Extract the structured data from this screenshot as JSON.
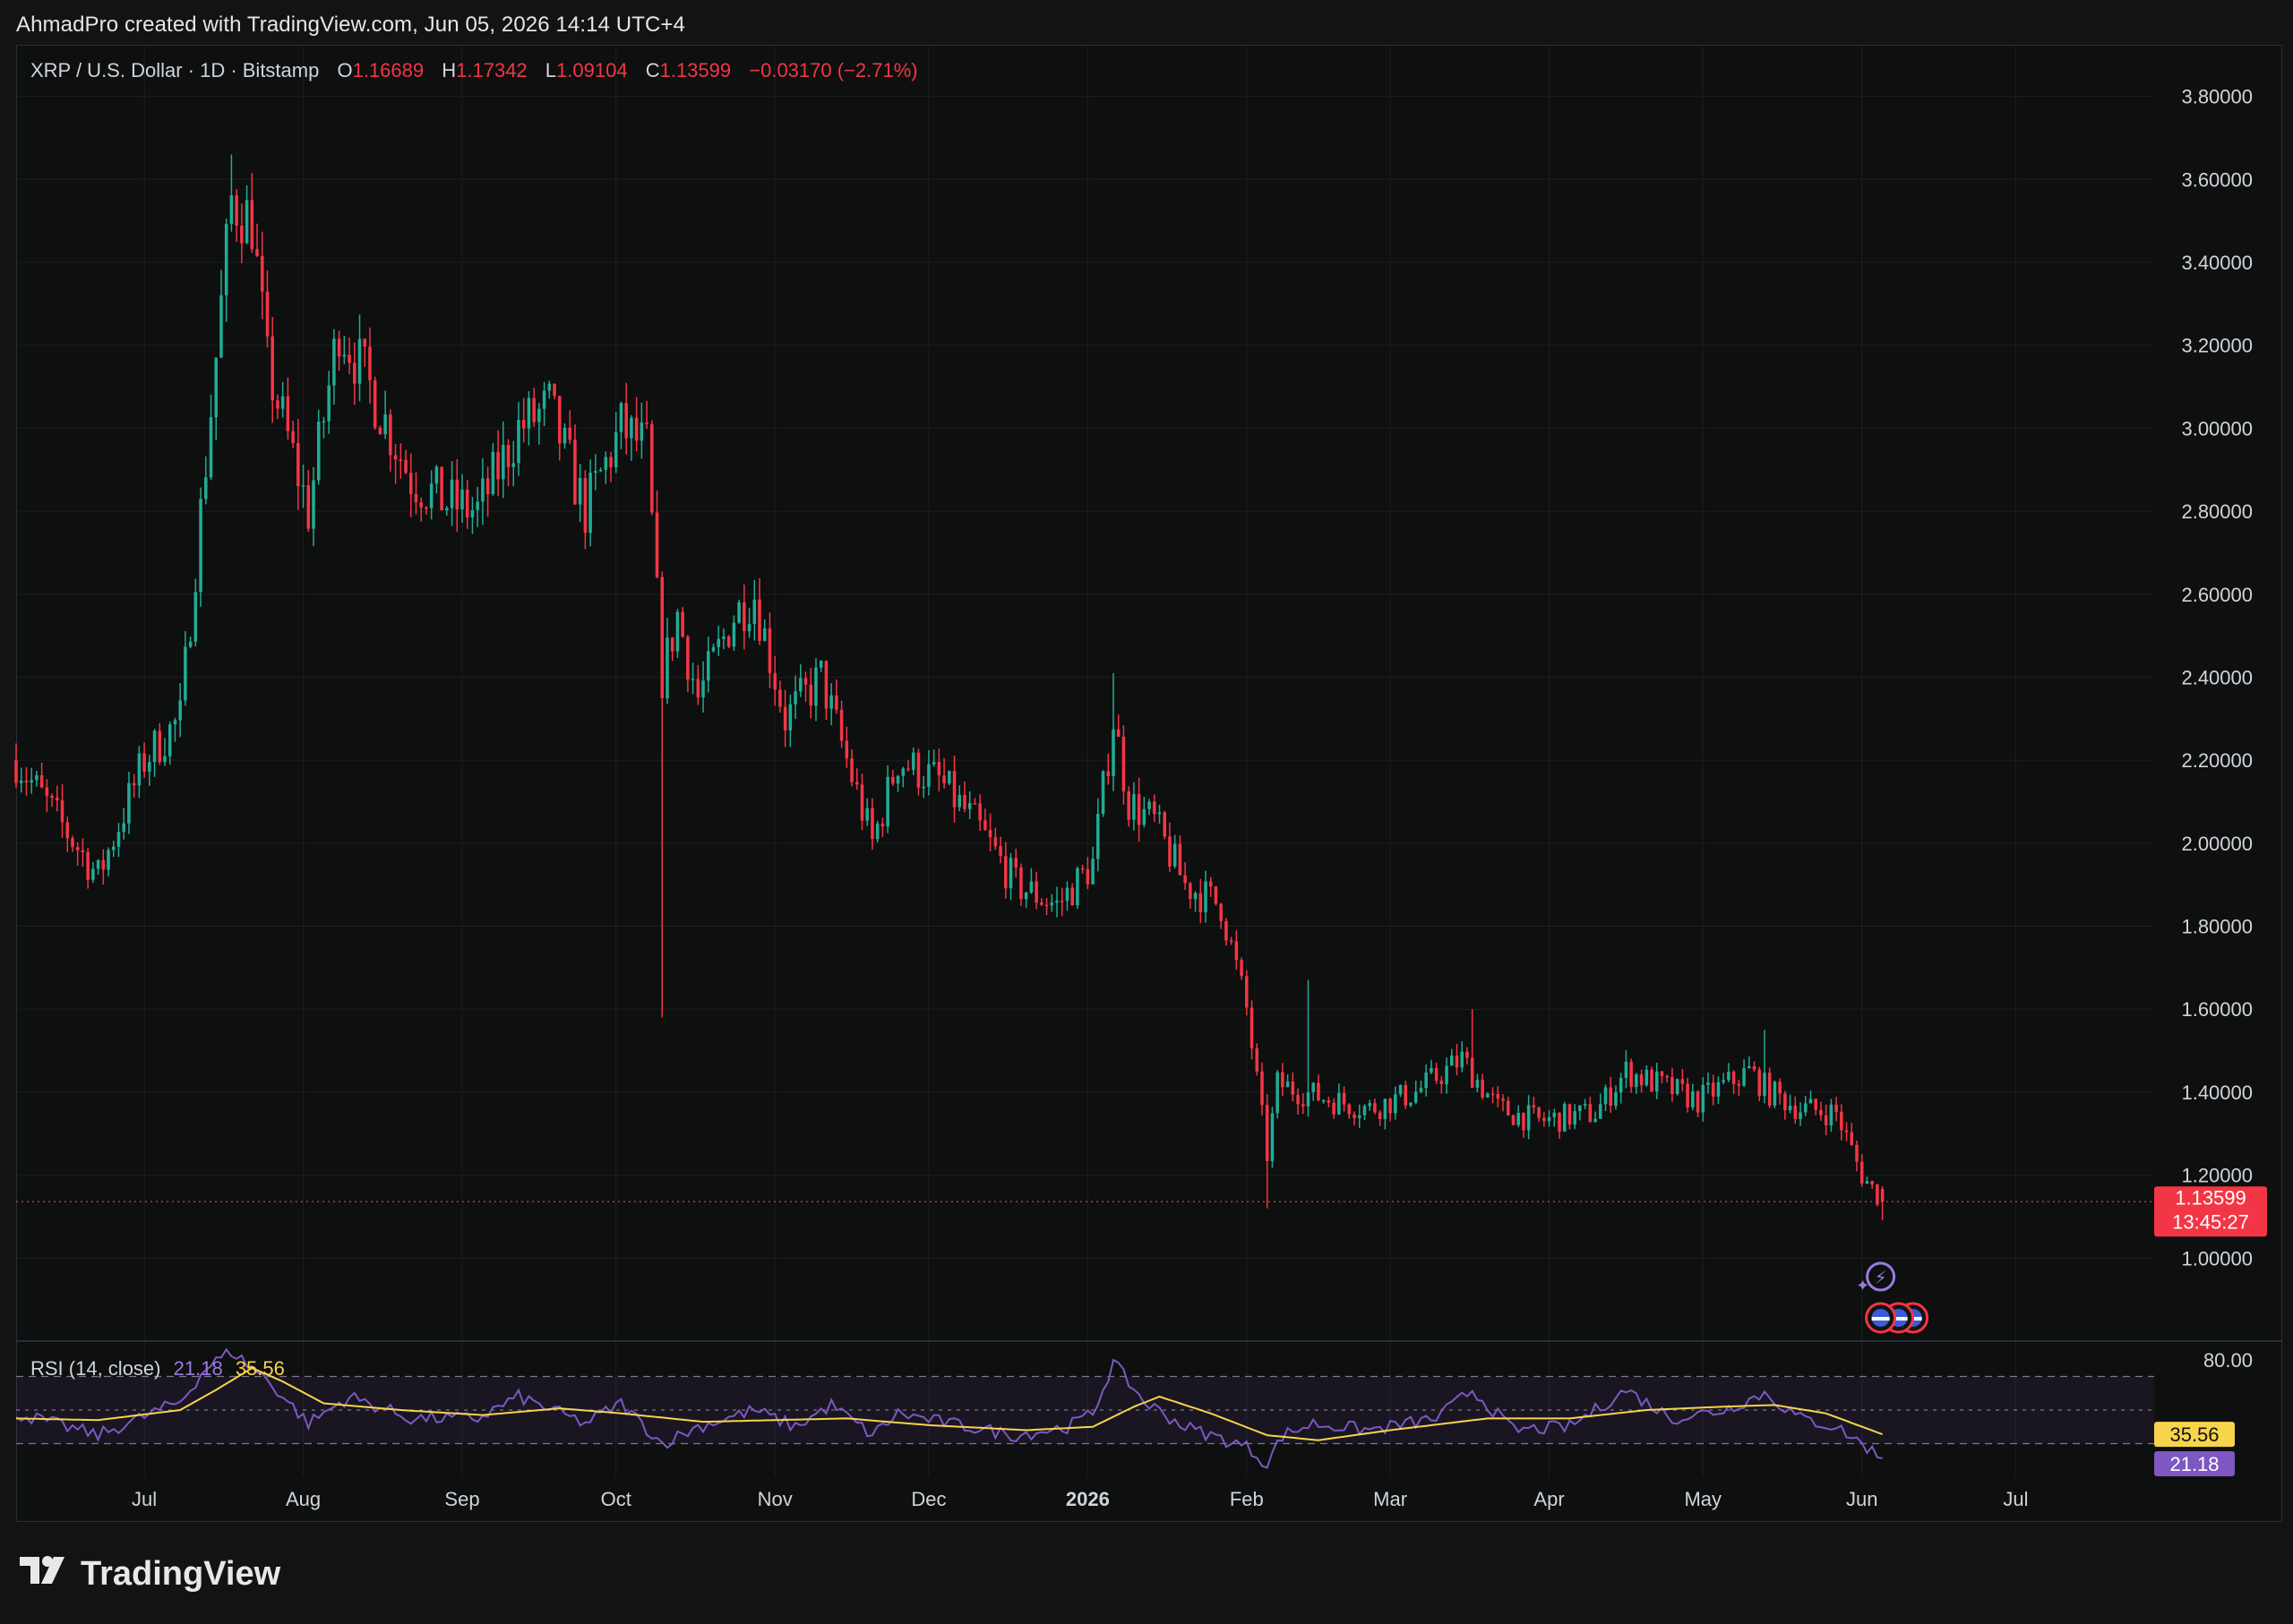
{
  "caption": "AhmadPro created with TradingView.com, Jun 05, 2026 14:14 UTC+4",
  "legend": {
    "symbol": "XRP / U.S. Dollar · 1D · Bitstamp",
    "open_label": "O",
    "open": "1.16689",
    "high_label": "H",
    "high": "1.17342",
    "low_label": "L",
    "low": "1.09104",
    "close_label": "C",
    "close": "1.13599",
    "change": "−0.03170 (−2.71%)"
  },
  "price_tag": {
    "price": "1.13599",
    "countdown": "13:45:27"
  },
  "rsi": {
    "legend": "RSI (14, close)",
    "value": "21.18",
    "ma_value": "35.56",
    "tick_80": "80.00",
    "tag_ma": "35.56",
    "tag_rsi": "21.18"
  },
  "brand": "TradingView",
  "colors": {
    "up": "#22ab94",
    "down": "#f23645",
    "rsi": "#7e57c2",
    "rsi_ma": "#f7d44c",
    "grid": "#1c1e22",
    "axis_text": "#d1d4dc"
  },
  "chart_data": [
    {
      "type": "candlestick",
      "title": "XRP / U.S. Dollar · 1D · Bitstamp",
      "ylim": [
        0.8,
        3.92
      ],
      "y_ticks": [
        1.0,
        1.2,
        1.4,
        1.6,
        1.8,
        2.0,
        2.2,
        2.4,
        2.6,
        2.8,
        3.0,
        3.2,
        3.4,
        3.6,
        3.8
      ],
      "x_tick_labels": [
        "Jul",
        "Aug",
        "Sep",
        "Oct",
        "Nov",
        "Dec",
        "2026",
        "Feb",
        "Mar",
        "Apr",
        "May",
        "Jun",
        "Jul"
      ],
      "x_range": [
        "2025-06-06",
        "2026-07-28"
      ],
      "last_close": 1.13599,
      "series": [
        {
          "name": "XRP/USD",
          "keypoints": [
            [
              "2025-06-06",
              2.2
            ],
            [
              "2025-06-22",
              1.92
            ],
            [
              "2025-07-01",
              2.2
            ],
            [
              "2025-07-08",
              2.3
            ],
            [
              "2025-07-13",
              2.92
            ],
            [
              "2025-07-18",
              3.55
            ],
            [
              "2025-07-22",
              3.5
            ],
            [
              "2025-07-25",
              3.15
            ],
            [
              "2025-08-02",
              2.8
            ],
            [
              "2025-08-08",
              3.25
            ],
            [
              "2025-08-14",
              3.1
            ],
            [
              "2025-08-22",
              2.88
            ],
            [
              "2025-08-29",
              2.82
            ],
            [
              "2025-09-04",
              2.8
            ],
            [
              "2025-09-12",
              3.0
            ],
            [
              "2025-09-18",
              3.05
            ],
            [
              "2025-09-25",
              2.8
            ],
            [
              "2025-10-02",
              3.0
            ],
            [
              "2025-10-07",
              2.95
            ],
            [
              "2025-10-10",
              2.4
            ],
            [
              "2025-10-13",
              2.55
            ],
            [
              "2025-10-17",
              2.35
            ],
            [
              "2025-10-24",
              2.55
            ],
            [
              "2025-10-28",
              2.6
            ],
            [
              "2025-11-03",
              2.3
            ],
            [
              "2025-11-10",
              2.4
            ],
            [
              "2025-11-20",
              2.0
            ],
            [
              "2025-11-25",
              2.2
            ],
            [
              "2025-12-03",
              2.15
            ],
            [
              "2025-12-10",
              2.05
            ],
            [
              "2025-12-18",
              1.9
            ],
            [
              "2025-12-26",
              1.85
            ],
            [
              "2026-01-02",
              1.95
            ],
            [
              "2026-01-06",
              2.3
            ],
            [
              "2026-01-09",
              2.1
            ],
            [
              "2026-01-14",
              2.05
            ],
            [
              "2026-01-20",
              1.9
            ],
            [
              "2026-01-27",
              1.85
            ],
            [
              "2026-02-01",
              1.6
            ],
            [
              "2026-02-05",
              1.25
            ],
            [
              "2026-02-07",
              1.42
            ],
            [
              "2026-02-12",
              1.4
            ],
            [
              "2026-02-18",
              1.38
            ],
            [
              "2026-02-25",
              1.36
            ],
            [
              "2026-03-06",
              1.4
            ],
            [
              "2026-03-15",
              1.48
            ],
            [
              "2026-03-22",
              1.36
            ],
            [
              "2026-03-30",
              1.33
            ],
            [
              "2026-04-10",
              1.35
            ],
            [
              "2026-04-16",
              1.45
            ],
            [
              "2026-04-22",
              1.42
            ],
            [
              "2026-04-30",
              1.38
            ],
            [
              "2026-05-10",
              1.45
            ],
            [
              "2026-05-14",
              1.4
            ],
            [
              "2026-05-20",
              1.36
            ],
            [
              "2026-05-27",
              1.35
            ],
            [
              "2026-06-01",
              1.2
            ],
            [
              "2026-06-05",
              1.13599
            ]
          ],
          "spikes": [
            [
              "2025-10-10",
              1.58
            ],
            [
              "2026-02-05",
              1.12
            ],
            [
              "2026-01-06",
              2.41
            ],
            [
              "2025-07-18",
              3.66
            ],
            [
              "2026-02-13",
              1.67
            ],
            [
              "2026-03-17",
              1.6
            ],
            [
              "2026-05-13",
              1.55
            ]
          ]
        }
      ]
    },
    {
      "type": "line",
      "title": "RSI (14, close)",
      "ylim": [
        10,
        90
      ],
      "bands": [
        30,
        50,
        70
      ],
      "y_ticks": [
        80
      ],
      "series": [
        {
          "name": "RSI",
          "keypoints": [
            [
              "2025-06-06",
              48
            ],
            [
              "2025-06-22",
              35
            ],
            [
              "2025-07-08",
              55
            ],
            [
              "2025-07-13",
              75
            ],
            [
              "2025-07-18",
              85
            ],
            [
              "2025-07-25",
              68
            ],
            [
              "2025-08-02",
              42
            ],
            [
              "2025-08-10",
              58
            ],
            [
              "2025-08-22",
              45
            ],
            [
              "2025-09-04",
              45
            ],
            [
              "2025-09-12",
              58
            ],
            [
              "2025-09-25",
              42
            ],
            [
              "2025-10-02",
              54
            ],
            [
              "2025-10-10",
              30
            ],
            [
              "2025-10-17",
              40
            ],
            [
              "2025-10-28",
              50
            ],
            [
              "2025-11-05",
              40
            ],
            [
              "2025-11-12",
              53
            ],
            [
              "2025-11-20",
              35
            ],
            [
              "2025-11-25",
              48
            ],
            [
              "2025-12-05",
              42
            ],
            [
              "2025-12-18",
              35
            ],
            [
              "2025-12-28",
              40
            ],
            [
              "2026-01-02",
              48
            ],
            [
              "2026-01-06",
              78
            ],
            [
              "2026-01-12",
              55
            ],
            [
              "2026-01-20",
              40
            ],
            [
              "2026-02-01",
              28
            ],
            [
              "2026-02-05",
              18
            ],
            [
              "2026-02-08",
              35
            ],
            [
              "2026-02-14",
              42
            ],
            [
              "2026-02-25",
              38
            ],
            [
              "2026-03-10",
              45
            ],
            [
              "2026-03-17",
              62
            ],
            [
              "2026-03-25",
              38
            ],
            [
              "2026-04-05",
              40
            ],
            [
              "2026-04-16",
              62
            ],
            [
              "2026-04-25",
              45
            ],
            [
              "2026-05-05",
              50
            ],
            [
              "2026-05-13",
              60
            ],
            [
              "2026-05-20",
              45
            ],
            [
              "2026-05-27",
              40
            ],
            [
              "2026-06-01",
              30
            ],
            [
              "2026-06-05",
              21.18
            ]
          ]
        },
        {
          "name": "RSI-based MA",
          "keypoints": [
            [
              "2025-06-06",
              45
            ],
            [
              "2025-06-22",
              44
            ],
            [
              "2025-07-08",
              50
            ],
            [
              "2025-07-15",
              62
            ],
            [
              "2025-07-22",
              75
            ],
            [
              "2025-07-28",
              67
            ],
            [
              "2025-08-05",
              54
            ],
            [
              "2025-08-20",
              50
            ],
            [
              "2025-09-05",
              47
            ],
            [
              "2025-09-20",
              51
            ],
            [
              "2025-10-02",
              48
            ],
            [
              "2025-10-18",
              43
            ],
            [
              "2025-11-01",
              44
            ],
            [
              "2025-11-15",
              45
            ],
            [
              "2025-12-01",
              41
            ],
            [
              "2025-12-20",
              38
            ],
            [
              "2026-01-02",
              40
            ],
            [
              "2026-01-10",
              52
            ],
            [
              "2026-01-15",
              58
            ],
            [
              "2026-01-25",
              48
            ],
            [
              "2026-02-05",
              35
            ],
            [
              "2026-02-15",
              32
            ],
            [
              "2026-03-01",
              38
            ],
            [
              "2026-03-20",
              45
            ],
            [
              "2026-04-05",
              45
            ],
            [
              "2026-04-20",
              50
            ],
            [
              "2026-05-05",
              52
            ],
            [
              "2026-05-15",
              53
            ],
            [
              "2026-05-25",
              48
            ],
            [
              "2026-06-05",
              35.56
            ]
          ]
        }
      ]
    }
  ]
}
